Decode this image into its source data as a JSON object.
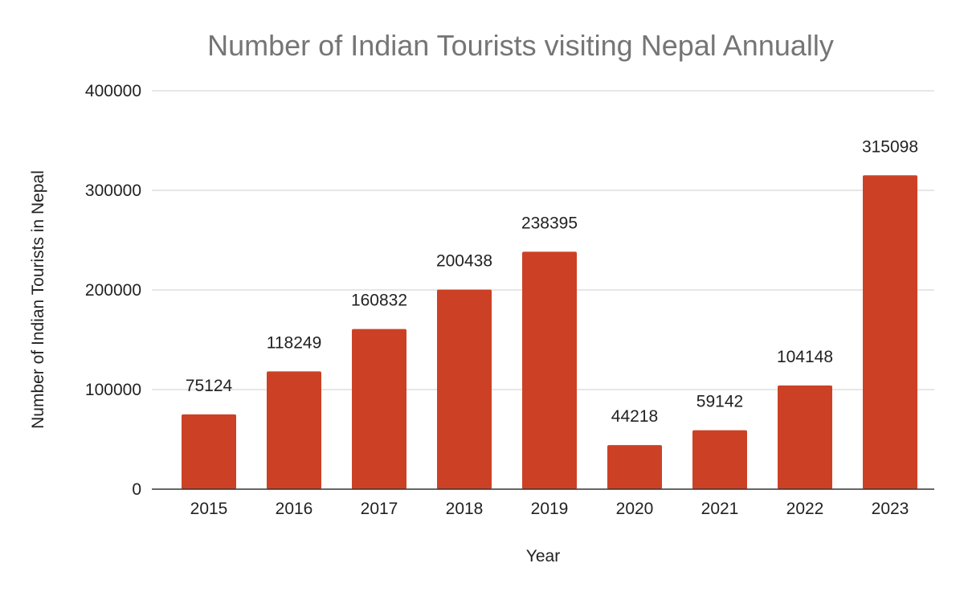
{
  "chart_data": {
    "type": "bar",
    "title": "Number of Indian Tourists visiting Nepal Annually",
    "xlabel": "Year",
    "ylabel": "Number of Indian Tourists in Nepal",
    "categories": [
      "2015",
      "2016",
      "2017",
      "2018",
      "2019",
      "2020",
      "2021",
      "2022",
      "2023"
    ],
    "values": [
      75124,
      118249,
      160832,
      200438,
      238395,
      44218,
      59142,
      104148,
      315098
    ],
    "data_labels": [
      "75124",
      "118249",
      "160832",
      "200438",
      "238395",
      "44218",
      "59142",
      "104148",
      "315098"
    ],
    "ylim": [
      0,
      400000
    ],
    "yticks": [
      0,
      100000,
      200000,
      300000,
      400000
    ],
    "ytick_labels": [
      "0",
      "100000",
      "200000",
      "300000",
      "400000"
    ],
    "grid": true,
    "legend": "none",
    "colors": {
      "bar": "#cc4125",
      "grid": "#cccccc",
      "axis": "#333333",
      "title": "#757575",
      "text": "#222222"
    }
  }
}
